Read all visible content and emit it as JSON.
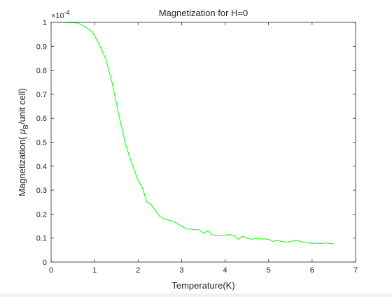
{
  "chart_data": {
    "type": "line",
    "title": "Magnetization for H=0",
    "xlabel": "Temperature(K)",
    "ylabel_prefix": "Magnetization( ",
    "ylabel_mu": "μ",
    "ylabel_sub": "B",
    "ylabel_suffix": "/unit cell)",
    "y_exponent_base": "×10",
    "y_exponent_power": "-4",
    "xlim": [
      0,
      7
    ],
    "ylim": [
      0,
      1
    ],
    "xticks": [
      "0",
      "1",
      "2",
      "3",
      "4",
      "5",
      "6",
      "7"
    ],
    "yticks": [
      "0",
      "0.1",
      "0.2",
      "0.3",
      "0.4",
      "0.5",
      "0.6",
      "0.7",
      "0.8",
      "0.9",
      "1"
    ],
    "grid": false,
    "line_color": "#00ff00",
    "series": [
      {
        "x": [
          0.0,
          0.3,
          0.6,
          0.75,
          0.95,
          1.1,
          1.25,
          1.4,
          1.55,
          1.7,
          1.8,
          1.9,
          2.0,
          2.1,
          2.2,
          2.3,
          2.4,
          2.5,
          2.6,
          2.7,
          2.8,
          2.9,
          3.0,
          3.1,
          3.2,
          3.3,
          3.4,
          3.5,
          3.6,
          3.7,
          3.8,
          3.9,
          4.0,
          4.1,
          4.2,
          4.3,
          4.4,
          4.5,
          4.6,
          4.7,
          4.8,
          4.9,
          5.0,
          5.1,
          5.2,
          5.3,
          5.4,
          5.5,
          5.6,
          5.7,
          5.8,
          5.9,
          6.0,
          6.1,
          6.2,
          6.3,
          6.4,
          6.5
        ],
        "y": [
          1.0,
          1.0,
          0.998,
          0.985,
          0.96,
          0.91,
          0.85,
          0.75,
          0.62,
          0.5,
          0.44,
          0.39,
          0.34,
          0.31,
          0.25,
          0.24,
          0.215,
          0.19,
          0.18,
          0.175,
          0.17,
          0.16,
          0.15,
          0.14,
          0.138,
          0.135,
          0.135,
          0.12,
          0.13,
          0.115,
          0.11,
          0.11,
          0.112,
          0.115,
          0.11,
          0.095,
          0.108,
          0.1,
          0.095,
          0.098,
          0.096,
          0.097,
          0.095,
          0.086,
          0.09,
          0.086,
          0.083,
          0.085,
          0.09,
          0.088,
          0.082,
          0.08,
          0.078,
          0.079,
          0.077,
          0.08,
          0.078,
          0.076
        ]
      }
    ]
  }
}
